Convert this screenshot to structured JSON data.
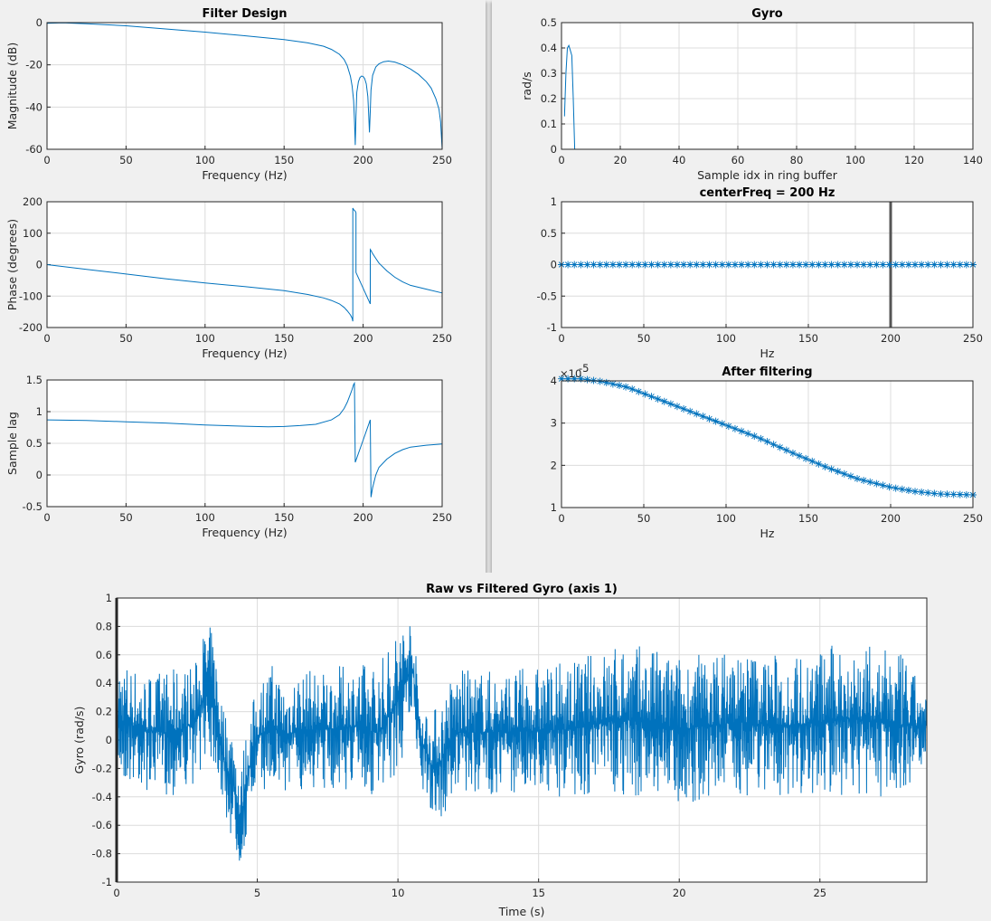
{
  "chart_data": [
    {
      "id": "magnitude",
      "type": "line",
      "title": "Filter Design",
      "xlabel": "Frequency (Hz)",
      "ylabel": "Magnitude (dB)",
      "xlim": [
        0,
        250
      ],
      "ylim": [
        -60,
        0
      ],
      "xticks": [
        0,
        50,
        100,
        150,
        200,
        250
      ],
      "yticks": [
        -60,
        -40,
        -20,
        0
      ],
      "grid": true,
      "series": [
        {
          "x": [
            0,
            10,
            25,
            50,
            75,
            100,
            125,
            150,
            165,
            175,
            180,
            185,
            188,
            190,
            192,
            193,
            194,
            194.5,
            195,
            195.5,
            196,
            197,
            198,
            199,
            200,
            201,
            202,
            203,
            203.5,
            204,
            204.5,
            205,
            206,
            208,
            210,
            213,
            216,
            220,
            225,
            230,
            235,
            240,
            243,
            246,
            248,
            249,
            250
          ],
          "y": [
            -0.3,
            -0.1,
            -0.5,
            -1.5,
            -3.0,
            -4.5,
            -6.2,
            -8.0,
            -9.6,
            -11.2,
            -12.7,
            -15.0,
            -17.5,
            -20.5,
            -25.5,
            -30,
            -37,
            -46,
            -58,
            -44,
            -33,
            -28,
            -26,
            -25.3,
            -25.5,
            -26.5,
            -29,
            -35,
            -43,
            -52,
            -42,
            -32,
            -25,
            -21,
            -19.5,
            -18.5,
            -18.2,
            -18.7,
            -20,
            -22,
            -24.5,
            -28,
            -31,
            -36,
            -41,
            -47,
            -60
          ]
        }
      ]
    },
    {
      "id": "phase",
      "type": "line",
      "title": "",
      "xlabel": "Frequency (Hz)",
      "ylabel": "Phase (degrees)",
      "xlim": [
        0,
        250
      ],
      "ylim": [
        -200,
        200
      ],
      "xticks": [
        0,
        50,
        100,
        150,
        200,
        250
      ],
      "yticks": [
        -200,
        -100,
        0,
        100,
        200
      ],
      "grid": true,
      "series": [
        {
          "x": [
            0,
            25,
            50,
            75,
            100,
            125,
            150,
            165,
            175,
            180,
            185,
            188,
            190,
            192,
            193,
            193.5,
            193.5,
            194,
            195,
            195.5,
            195.5,
            200,
            204.5,
            204.5,
            205,
            206,
            208,
            210,
            215,
            220,
            225,
            230,
            240,
            250
          ],
          "y": [
            0,
            -15,
            -30,
            -45,
            -58,
            -70,
            -83,
            -95,
            -106,
            -114,
            -125,
            -136,
            -147,
            -160,
            -170,
            -180,
            180,
            175,
            170,
            165,
            -25,
            -75,
            -125,
            48,
            45,
            35,
            20,
            5,
            -20,
            -40,
            -55,
            -66,
            -78,
            -90
          ]
        }
      ]
    },
    {
      "id": "sample-lag",
      "type": "line",
      "title": "",
      "xlabel": "Frequency (Hz)",
      "ylabel": "Sample lag",
      "xlim": [
        0,
        250
      ],
      "ylim": [
        -0.5,
        1.5
      ],
      "xticks": [
        0,
        50,
        100,
        150,
        200,
        250
      ],
      "yticks": [
        -0.5,
        0,
        0.5,
        1,
        1.5
      ],
      "grid": true,
      "series": [
        {
          "x": [
            0,
            25,
            50,
            75,
            100,
            125,
            140,
            150,
            160,
            170,
            180,
            185,
            188,
            190,
            192,
            193,
            194,
            194.5,
            195,
            200,
            204.5,
            205,
            206,
            208,
            210,
            215,
            220,
            225,
            230,
            240,
            250
          ],
          "y": [
            0.87,
            0.86,
            0.84,
            0.82,
            0.79,
            0.77,
            0.76,
            0.765,
            0.78,
            0.8,
            0.87,
            0.95,
            1.05,
            1.15,
            1.28,
            1.35,
            1.43,
            1.45,
            0.2,
            0.55,
            0.87,
            -0.35,
            -0.2,
            0.0,
            0.12,
            0.25,
            0.34,
            0.4,
            0.44,
            0.47,
            0.49
          ]
        }
      ]
    },
    {
      "id": "gyro",
      "type": "line",
      "title": "Gyro",
      "xlabel": "Sample idx in ring buffer",
      "ylabel": "rad/s",
      "xlim": [
        0,
        140
      ],
      "ylim": [
        0,
        0.5
      ],
      "xticks": [
        0,
        20,
        40,
        60,
        80,
        100,
        120,
        140
      ],
      "yticks": [
        0,
        0.1,
        0.2,
        0.3,
        0.4,
        0.5
      ],
      "grid": true,
      "series": [
        {
          "x": [
            1,
            1.5,
            2,
            2.5,
            3,
            3.5,
            4,
            4.5,
            5,
            128
          ],
          "y": [
            0.13,
            0.3,
            0.4,
            0.41,
            0.39,
            0.37,
            0.2,
            0.0,
            0.0,
            0.0
          ]
        }
      ]
    },
    {
      "id": "center-freq",
      "type": "scatter",
      "title": "centerFreq = 200 Hz",
      "xlabel": "Hz",
      "ylabel": "",
      "xlim": [
        0,
        250
      ],
      "ylim": [
        -1,
        1
      ],
      "xticks": [
        0,
        50,
        100,
        150,
        200,
        250
      ],
      "yticks": [
        -1,
        -0.5,
        0,
        0.5,
        1
      ],
      "grid": true,
      "vertical_line_x": 200,
      "highlight_x": 200,
      "marker": "*",
      "series": [
        {
          "x_start": 0,
          "x_end": 250,
          "count": 65,
          "value": 0
        }
      ]
    },
    {
      "id": "after-filtering",
      "type": "scatter",
      "title": "After filtering",
      "xlabel": "Hz",
      "ylabel": "",
      "xlim": [
        0,
        250
      ],
      "ylim": [
        1,
        4
      ],
      "xticks": [
        0,
        50,
        100,
        150,
        200,
        250
      ],
      "yticks": [
        1,
        2,
        3,
        4
      ],
      "exponent_label": "×10",
      "exponent_power": "-5",
      "grid": true,
      "marker": "*",
      "series": [
        {
          "x_start": 0,
          "x_end": 250,
          "count": 65,
          "curve_x": [
            0,
            12,
            25,
            40,
            60,
            80,
            100,
            120,
            140,
            160,
            180,
            200,
            215,
            230,
            250
          ],
          "curve_y": [
            4.05,
            4.05,
            3.98,
            3.85,
            3.55,
            3.25,
            2.95,
            2.65,
            2.3,
            1.97,
            1.68,
            1.48,
            1.38,
            1.32,
            1.3
          ]
        }
      ]
    },
    {
      "id": "raw-vs-filtered",
      "type": "line",
      "title": "Raw vs Filtered Gyro (axis 1)",
      "xlabel": "Time (s)",
      "ylabel": "Gyro (rad/s)",
      "xlim": [
        0,
        28.8
      ],
      "ylim": [
        -1,
        1
      ],
      "xticks": [
        0,
        5,
        10,
        15,
        20,
        25
      ],
      "yticks": [
        -1,
        -0.8,
        -0.6,
        -0.4,
        -0.2,
        0,
        0.2,
        0.4,
        0.6,
        0.8,
        1
      ],
      "grid": true,
      "series": [
        {
          "name": "",
          "envelope_t": [
            0.05,
            1,
            2,
            2.8,
            3.2,
            3.5,
            3.8,
            4.2,
            4.4,
            4.6,
            5,
            5.5,
            6,
            6.5,
            7.5,
            8.5,
            9.3,
            9.8,
            10.3,
            10.5,
            10.8,
            11.2,
            11.5,
            12,
            14,
            16,
            18,
            20,
            22,
            24,
            26,
            28,
            28.8
          ],
          "envelope_upper": [
            0.6,
            0.48,
            0.5,
            0.55,
            0.87,
            0.7,
            0.25,
            0.1,
            -0.25,
            0.1,
            0.4,
            0.55,
            0.45,
            0.5,
            0.5,
            0.55,
            0.55,
            0.72,
            0.93,
            0.88,
            0.3,
            0.2,
            0.3,
            0.5,
            0.5,
            0.55,
            0.7,
            0.6,
            0.65,
            0.6,
            0.7,
            0.6,
            0.3
          ],
          "envelope_lower": [
            -0.3,
            -0.35,
            -0.4,
            -0.3,
            -0.1,
            -0.2,
            -0.5,
            -0.8,
            -0.92,
            -0.7,
            -0.35,
            -0.35,
            -0.4,
            -0.35,
            -0.35,
            -0.35,
            -0.45,
            -0.3,
            -0.1,
            0.2,
            -0.3,
            -0.55,
            -0.62,
            -0.4,
            -0.38,
            -0.4,
            -0.4,
            -0.45,
            -0.4,
            -0.4,
            -0.4,
            -0.4,
            -0.1
          ]
        }
      ]
    }
  ]
}
